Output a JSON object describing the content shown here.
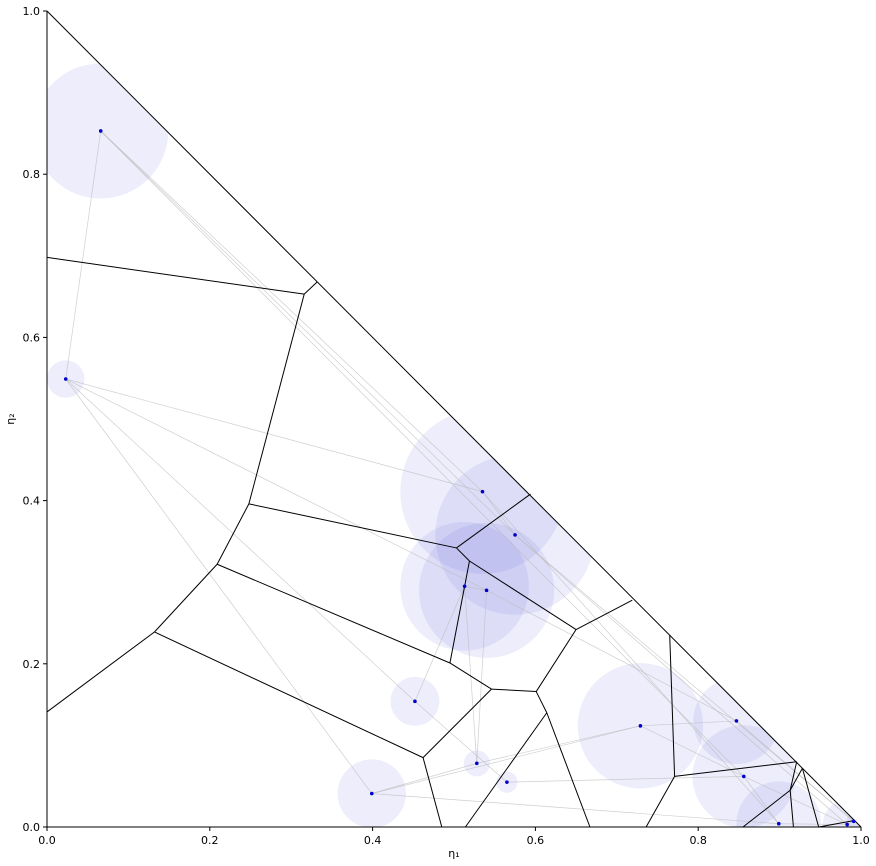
{
  "chart_data": {
    "type": "scatter",
    "title": "",
    "xlabel": "η₁",
    "ylabel": "η₂",
    "xlim": [
      0,
      1
    ],
    "ylim": [
      0,
      1
    ],
    "grid": false,
    "legend": "none",
    "x_ticks": [
      "0.0",
      "0.2",
      "0.4",
      "0.6",
      "0.8",
      "1.0"
    ],
    "y_ticks": [
      "0.0",
      "0.2",
      "0.4",
      "0.6",
      "0.8",
      "1.0"
    ],
    "x_tick_values": [
      0,
      0.2,
      0.4,
      0.6,
      0.8,
      1.0
    ],
    "y_tick_values": [
      0,
      0.2,
      0.4,
      0.6,
      0.8,
      1.0
    ],
    "point_color": "#0000cc",
    "circle_color": "#6b6be0",
    "edge_color": "#000000",
    "link_color": "#bbbbbb",
    "points": [
      {
        "x": 0.066,
        "y": 0.853,
        "r": 0.083
      },
      {
        "x": 0.023,
        "y": 0.549,
        "r": 0.023
      },
      {
        "x": 0.535,
        "y": 0.411,
        "r": 0.101
      },
      {
        "x": 0.575,
        "y": 0.358,
        "r": 0.098
      },
      {
        "x": 0.513,
        "y": 0.295,
        "r": 0.079
      },
      {
        "x": 0.54,
        "y": 0.29,
        "r": 0.083
      },
      {
        "x": 0.452,
        "y": 0.154,
        "r": 0.03
      },
      {
        "x": 0.399,
        "y": 0.041,
        "r": 0.042
      },
      {
        "x": 0.528,
        "y": 0.078,
        "r": 0.016
      },
      {
        "x": 0.565,
        "y": 0.055,
        "r": 0.013
      },
      {
        "x": 0.729,
        "y": 0.124,
        "r": 0.077
      },
      {
        "x": 0.847,
        "y": 0.13,
        "r": 0.053
      },
      {
        "x": 0.856,
        "y": 0.062,
        "r": 0.063
      },
      {
        "x": 0.899,
        "y": 0.004,
        "r": 0.052
      },
      {
        "x": 0.983,
        "y": 0.003,
        "r": 0.03
      },
      {
        "x": 0.991,
        "y": 0.007,
        "r": 0.009
      }
    ],
    "edges": [
      [
        [
          0,
          0.698
        ],
        [
          0.316,
          0.653
        ]
      ],
      [
        [
          0.316,
          0.653
        ],
        [
          0.332,
          0.668
        ]
      ],
      [
        [
          0.316,
          0.653
        ],
        [
          0.248,
          0.396
        ]
      ],
      [
        [
          0.248,
          0.396
        ],
        [
          0.209,
          0.322
        ]
      ],
      [
        [
          0.209,
          0.322
        ],
        [
          0.132,
          0.239
        ]
      ],
      [
        [
          0.132,
          0.239
        ],
        [
          0,
          0.141
        ]
      ],
      [
        [
          0.248,
          0.396
        ],
        [
          0.503,
          0.342
        ]
      ],
      [
        [
          0.503,
          0.342
        ],
        [
          0.594,
          0.408
        ]
      ],
      [
        [
          0.503,
          0.342
        ],
        [
          0.519,
          0.326
        ]
      ],
      [
        [
          0.519,
          0.326
        ],
        [
          0.65,
          0.242
        ]
      ],
      [
        [
          0.519,
          0.326
        ],
        [
          0.495,
          0.201
        ]
      ],
      [
        [
          0.209,
          0.322
        ],
        [
          0.495,
          0.201
        ]
      ],
      [
        [
          0.495,
          0.201
        ],
        [
          0.546,
          0.169
        ]
      ],
      [
        [
          0.546,
          0.169
        ],
        [
          0.601,
          0.166
        ]
      ],
      [
        [
          0.601,
          0.166
        ],
        [
          0.65,
          0.242
        ]
      ],
      [
        [
          0.65,
          0.242
        ],
        [
          0.719,
          0.278
        ]
      ],
      [
        [
          0.132,
          0.239
        ],
        [
          0.462,
          0.085
        ]
      ],
      [
        [
          0.462,
          0.085
        ],
        [
          0.546,
          0.169
        ]
      ],
      [
        [
          0.462,
          0.085
        ],
        [
          0.485,
          0
        ]
      ],
      [
        [
          0.601,
          0.166
        ],
        [
          0.614,
          0.14
        ]
      ],
      [
        [
          0.614,
          0.14
        ],
        [
          0.514,
          0
        ]
      ],
      [
        [
          0.614,
          0.14
        ],
        [
          0.667,
          0
        ]
      ],
      [
        [
          0.765,
          0.235
        ],
        [
          0.771,
          0.062
        ]
      ],
      [
        [
          0.771,
          0.062
        ],
        [
          0.736,
          0
        ]
      ],
      [
        [
          0.771,
          0.062
        ],
        [
          0.921,
          0.08
        ]
      ],
      [
        [
          0.921,
          0.08
        ],
        [
          0.913,
          0.045
        ]
      ],
      [
        [
          0.913,
          0.045
        ],
        [
          0.855,
          0
        ]
      ],
      [
        [
          0.913,
          0.045
        ],
        [
          0.917,
          0
        ]
      ],
      [
        [
          0.913,
          0.045
        ],
        [
          0.928,
          0.072
        ]
      ],
      [
        [
          0.928,
          0.072
        ],
        [
          0.948,
          0
        ]
      ],
      [
        [
          0.948,
          0
        ],
        [
          0.992,
          0.008
        ]
      ]
    ],
    "links": [
      [
        0,
        1
      ],
      [
        0,
        2
      ],
      [
        0,
        3
      ],
      [
        0,
        12
      ],
      [
        1,
        2
      ],
      [
        1,
        5
      ],
      [
        1,
        7
      ],
      [
        1,
        6
      ],
      [
        2,
        3
      ],
      [
        2,
        13
      ],
      [
        3,
        14
      ],
      [
        3,
        15
      ],
      [
        4,
        5
      ],
      [
        4,
        6
      ],
      [
        4,
        8
      ],
      [
        5,
        8
      ],
      [
        5,
        11
      ],
      [
        6,
        9
      ],
      [
        7,
        8
      ],
      [
        7,
        10
      ],
      [
        7,
        13
      ],
      [
        8,
        10
      ],
      [
        9,
        12
      ],
      [
        10,
        11
      ],
      [
        10,
        12
      ],
      [
        11,
        15
      ],
      [
        12,
        14
      ],
      [
        12,
        13
      ],
      [
        13,
        14
      ],
      [
        14,
        15
      ]
    ]
  }
}
